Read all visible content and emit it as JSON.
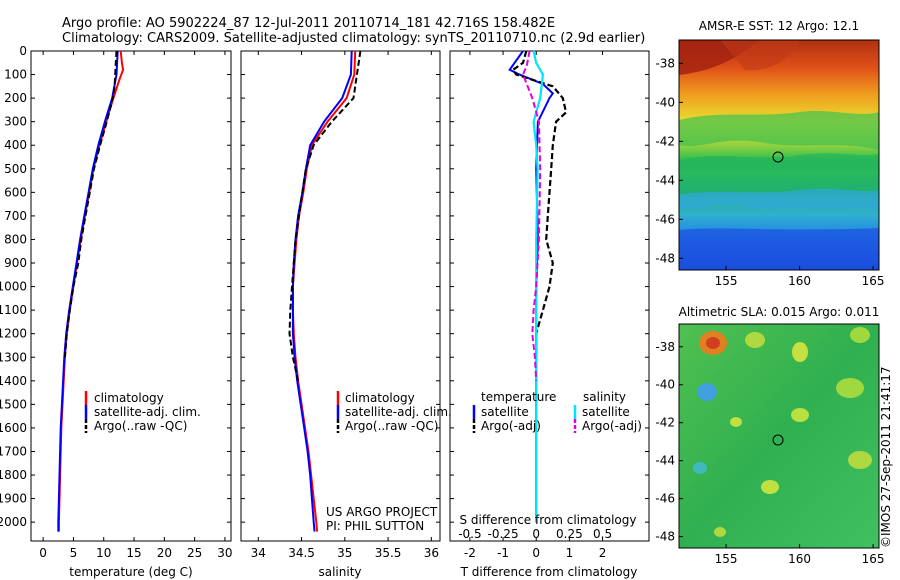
{
  "title": {
    "line1": "Argo profile: AO 5902224_87 12-Jul-2011 20110714_181 42.716S 158.482E",
    "line2": "Climatology: CARS2009. Satellite-adjusted climatology: synTS_20110710.nc (2.9d earlier)"
  },
  "colors": {
    "climatology": "#ff0000",
    "satellite": "#0000ff",
    "argo": "#000000",
    "sat_salinity": "#00e5ff",
    "argo_salinity": "#e000e0"
  },
  "project_note": [
    "US ARGO PROJECT",
    "PI: PHIL SUTTON"
  ],
  "side_label": "©IMOS 27-Sep-2011 21:41:17",
  "chart_data": [
    {
      "type": "line",
      "panel": "temperature",
      "xlabel": "temperature (deg C)",
      "ylim": [
        2080,
        0
      ],
      "xlim": [
        -2,
        31
      ],
      "yticks": [
        "0",
        "100",
        "200",
        "300",
        "400",
        "500",
        "600",
        "700",
        "800",
        "900",
        "1000",
        "1100",
        "1200",
        "1300",
        "1400",
        "1500",
        "1600",
        "1700",
        "1800",
        "1900",
        "2000"
      ],
      "xticks": [
        "0",
        "5",
        "10",
        "15",
        "20",
        "25",
        "30"
      ],
      "legend": [
        "climatology",
        "satellite-adj. clim.",
        "Argo(..raw -QC)"
      ],
      "series": [
        {
          "name": "climatology",
          "depth": [
            0,
            50,
            80,
            120,
            200,
            300,
            400,
            500,
            600,
            700,
            800,
            900,
            1000,
            1100,
            1200,
            1300,
            1400,
            1500,
            1600,
            1700,
            1800,
            1900,
            2000,
            2040
          ],
          "values": [
            12.8,
            13.0,
            13.2,
            12.6,
            11.6,
            10.4,
            9.3,
            8.3,
            7.6,
            6.9,
            6.2,
            5.6,
            5.0,
            4.4,
            3.9,
            3.6,
            3.4,
            3.2,
            3.0,
            2.9,
            2.8,
            2.7,
            2.6,
            2.6
          ]
        },
        {
          "name": "satellite-adj. clim.",
          "depth": [
            0,
            50,
            100,
            200,
            300,
            400,
            500,
            600,
            700,
            800,
            900,
            1000,
            1100,
            1200,
            1300,
            1400,
            1500,
            1600,
            1700,
            1800,
            1900,
            2000,
            2040
          ],
          "values": [
            12.3,
            12.2,
            12.1,
            11.4,
            10.2,
            9.1,
            8.2,
            7.5,
            6.8,
            6.1,
            5.5,
            4.9,
            4.3,
            3.8,
            3.5,
            3.3,
            3.1,
            2.9,
            2.8,
            2.7,
            2.6,
            2.5,
            2.5
          ]
        },
        {
          "name": "Argo(..raw -QC)",
          "depth": [
            0,
            50,
            100,
            150,
            200,
            300,
            400,
            500,
            600,
            700,
            800,
            900,
            1000,
            1100,
            1200,
            1300
          ],
          "values": [
            12.1,
            12.0,
            11.9,
            11.8,
            11.5,
            10.5,
            9.4,
            8.4,
            7.7,
            7.0,
            6.3,
            5.8,
            5.0,
            4.4,
            3.9,
            3.6
          ]
        }
      ]
    },
    {
      "type": "line",
      "panel": "salinity",
      "xlabel": "salinity",
      "ylim": [
        2080,
        0
      ],
      "xlim": [
        33.8,
        36.1
      ],
      "xticks": [
        "34",
        "34.5",
        "35",
        "35.5",
        "36"
      ],
      "legend": [
        "climatology",
        "satellite-adj. clim.",
        "Argo(..raw -QC)"
      ],
      "series": [
        {
          "name": "climatology",
          "depth": [
            0,
            100,
            200,
            300,
            400,
            500,
            600,
            700,
            800,
            900,
            1000,
            1100,
            1200,
            1300,
            1400,
            1500,
            1600,
            1700,
            1800,
            1900,
            2000,
            2040
          ],
          "values": [
            35.12,
            35.11,
            35.02,
            34.8,
            34.62,
            34.56,
            34.52,
            34.47,
            34.44,
            34.42,
            34.4,
            34.4,
            34.41,
            34.43,
            34.46,
            34.5,
            34.54,
            34.58,
            34.61,
            34.64,
            34.67,
            34.68
          ]
        },
        {
          "name": "satellite-adj. clim.",
          "depth": [
            0,
            100,
            200,
            300,
            400,
            500,
            600,
            700,
            800,
            900,
            1000,
            1100,
            1200,
            1300,
            1400,
            1500,
            1600,
            1700,
            1800,
            1900,
            2000,
            2040
          ],
          "values": [
            35.08,
            35.07,
            34.97,
            34.76,
            34.6,
            34.55,
            34.51,
            34.46,
            34.43,
            34.41,
            34.4,
            34.4,
            34.4,
            34.42,
            34.45,
            34.49,
            34.53,
            34.57,
            34.6,
            34.62,
            34.64,
            34.65
          ]
        },
        {
          "name": "Argo(..raw -QC)",
          "depth": [
            0,
            50,
            100,
            200,
            300,
            400,
            500,
            600,
            700,
            800,
            900,
            1000,
            1100,
            1200,
            1300,
            1400
          ],
          "values": [
            35.18,
            35.16,
            35.14,
            35.1,
            34.85,
            34.64,
            34.55,
            34.51,
            34.47,
            34.43,
            34.41,
            34.39,
            34.37,
            34.36,
            34.4,
            34.46
          ]
        }
      ]
    },
    {
      "type": "line",
      "panel": "difference",
      "xlabel": "T difference from climatology",
      "top_xlabel": "S difference from climatology",
      "ylim": [
        2080,
        0
      ],
      "xlim": [
        -2.6,
        3.4
      ],
      "xticks": [
        "-2",
        "-1",
        "0",
        "1",
        "2"
      ],
      "top_xticks": [
        "-0.5",
        "-0.25",
        "0",
        "0.25",
        "0.5"
      ],
      "legend_headers": [
        "temperature",
        "salinity"
      ],
      "legend": [
        "satellite",
        "Argo(-adj)",
        "satellite",
        "Argo(-adj)"
      ],
      "series": [
        {
          "name": "temperature satellite",
          "depth": [
            0,
            40,
            80,
            100,
            140,
            180,
            200,
            300,
            500,
            800,
            1000,
            1200,
            1500,
            1800,
            2000
          ],
          "values": [
            -0.4,
            -0.6,
            -0.8,
            -0.5,
            0.2,
            0.5,
            0.4,
            0.05,
            0.0,
            0.05,
            0.0,
            0.0,
            0.0,
            0.0,
            0.0
          ]
        },
        {
          "name": "temperature Argo(-adj)",
          "depth": [
            0,
            50,
            80,
            100,
            150,
            200,
            260,
            300,
            400,
            500,
            600,
            700,
            800,
            900,
            1000,
            1100,
            1200,
            1300
          ],
          "values": [
            -0.3,
            -0.4,
            -0.7,
            -0.6,
            0.5,
            0.8,
            0.9,
            0.6,
            0.5,
            0.45,
            0.4,
            0.35,
            0.3,
            0.5,
            0.4,
            0.2,
            0.0,
            0.0
          ]
        },
        {
          "name": "salinity satellite",
          "depth": [
            0,
            50,
            100,
            200,
            260,
            300,
            400,
            500,
            800,
            1000,
            1200,
            1500,
            1800,
            2000
          ],
          "values": [
            -0.02,
            0.0,
            0.05,
            0.03,
            0.0,
            -0.02,
            0.0,
            0.01,
            0.0,
            0.0,
            0.0,
            0.0,
            0.0,
            0.0
          ]
        },
        {
          "name": "salinity Argo(-adj)",
          "depth": [
            0,
            60,
            100,
            200,
            300,
            500,
            800,
            1000,
            1100,
            1200,
            1300,
            1400
          ],
          "values": [
            -0.05,
            -0.07,
            -0.1,
            -0.03,
            0.02,
            0.03,
            0.02,
            0.0,
            -0.02,
            -0.03,
            -0.01,
            0.0
          ]
        }
      ]
    },
    {
      "type": "heatmap",
      "panel": "sst_map",
      "title": "AMSR-E SST: 12 Argo: 12.1",
      "xticks": [
        "155",
        "160",
        "165"
      ],
      "yticks": [
        "-38",
        "-40",
        "-42",
        "-44",
        "-46",
        "-48"
      ],
      "marker": {
        "lon": 158.482,
        "lat": -42.716
      }
    },
    {
      "type": "heatmap",
      "panel": "sla_map",
      "title": "Altimetric SLA: 0.015 Argo: 0.011",
      "xticks": [
        "155",
        "160",
        "165"
      ],
      "yticks": [
        "-38",
        "-40",
        "-42",
        "-44",
        "-46",
        "-48"
      ],
      "marker": {
        "lon": 158.482,
        "lat": -42.716
      }
    }
  ]
}
